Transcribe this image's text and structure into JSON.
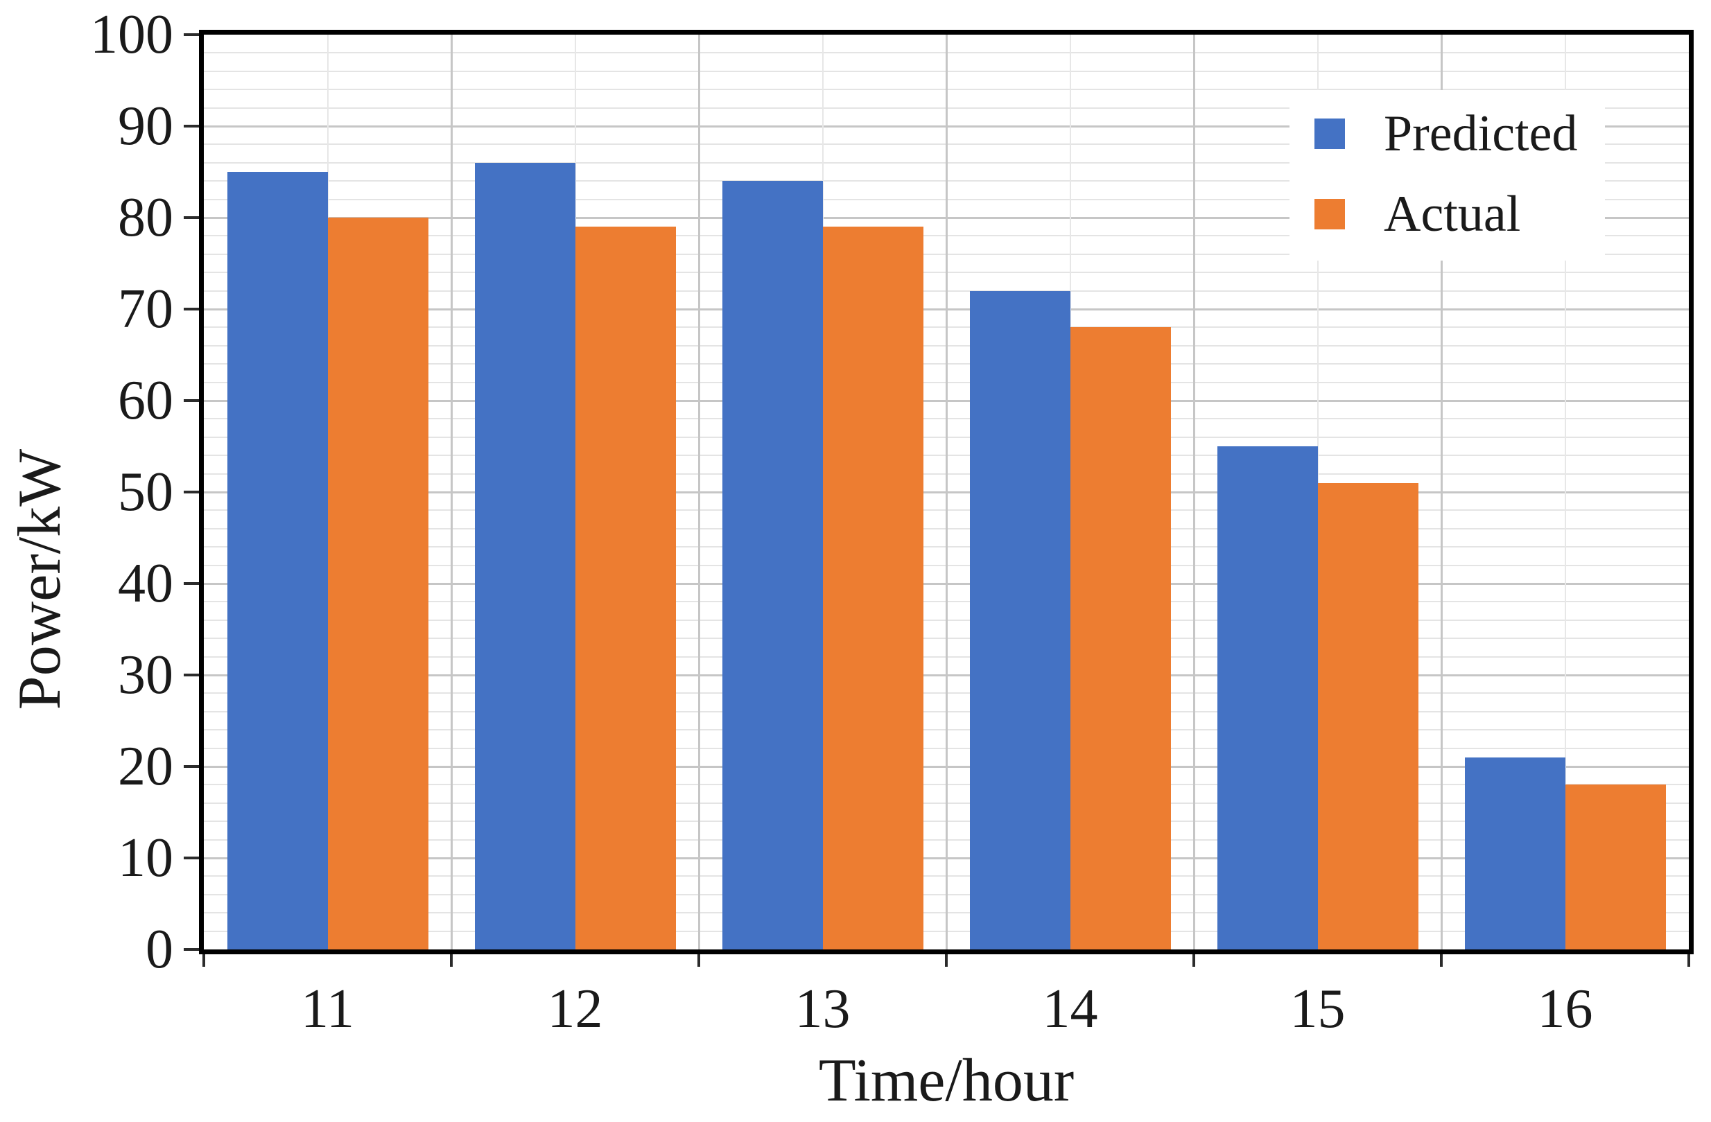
{
  "chart_data": {
    "type": "bar",
    "title": "",
    "xlabel": "Time/hour",
    "ylabel": "Power/kW",
    "categories": [
      "11",
      "12",
      "13",
      "14",
      "15",
      "16"
    ],
    "series": [
      {
        "name": "Predicted",
        "color": "#4472C4",
        "values": [
          85,
          86,
          84,
          72,
          55,
          21
        ]
      },
      {
        "name": "Actual",
        "color": "#ED7D31",
        "values": [
          80,
          79,
          79,
          68,
          51,
          18
        ]
      }
    ],
    "ylim": [
      0,
      100
    ],
    "y_major_step": 10,
    "y_minor_step": 2,
    "y_tick_labels": [
      "0",
      "10",
      "20",
      "30",
      "40",
      "50",
      "60",
      "70",
      "80",
      "90",
      "100"
    ],
    "grid": true,
    "legend_position": "top-right",
    "colors": {
      "axis_frame": "#000000",
      "major_grid": "#c6c6c6",
      "minor_grid": "#e4e4e4",
      "background": "#ffffff",
      "text": "#1a1a1a"
    }
  }
}
